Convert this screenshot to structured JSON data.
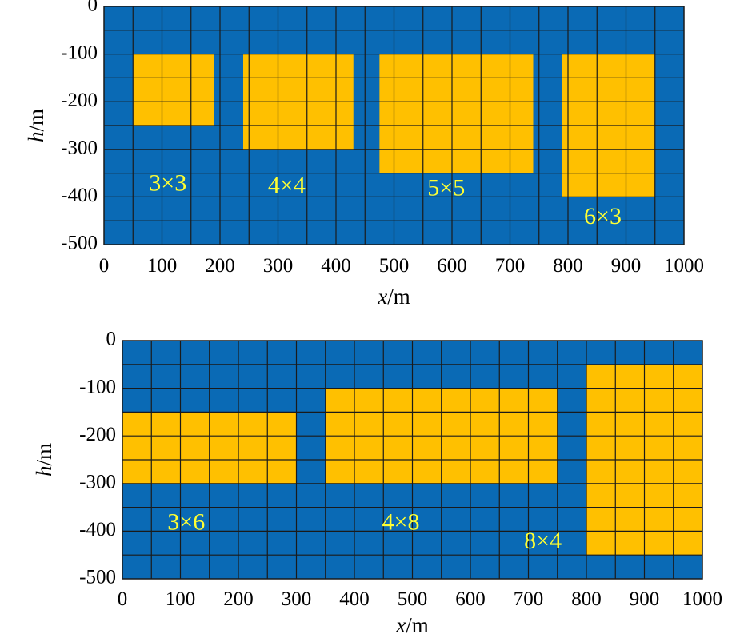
{
  "colors": {
    "background_cells": "#0a6ab5",
    "anomaly_cells": "#ffc000",
    "grid_lines": "#1a1a1a",
    "block_labels": "#ffff33"
  },
  "chart_data": [
    {
      "type": "heatmap",
      "xlabel_italic": "x",
      "xlabel_unit": "/m",
      "ylabel_italic": "h",
      "ylabel_unit": "/m",
      "xlim": [
        0,
        1000
      ],
      "ylim": [
        -500,
        0
      ],
      "x_ticks": [
        "0",
        "100",
        "200",
        "300",
        "400",
        "500",
        "600",
        "700",
        "800",
        "900",
        "1000"
      ],
      "y_ticks": [
        "0",
        "-100",
        "-200",
        "-300",
        "-400",
        "-500"
      ],
      "cell_width": 50,
      "cell_height": 50,
      "grid": true,
      "blocks": [
        {
          "label": "3×3",
          "x0": 50,
          "x1": 190,
          "top": -100,
          "bottom": -250,
          "label_x": 110,
          "label_h": -375
        },
        {
          "label": "4×4",
          "x0": 240,
          "x1": 430,
          "top": -100,
          "bottom": -300,
          "label_x": 315,
          "label_h": -380
        },
        {
          "label": "5×5",
          "x0": 475,
          "x1": 740,
          "top": -100,
          "bottom": -350,
          "label_x": 590,
          "label_h": -385
        },
        {
          "label": "6×3",
          "x0": 790,
          "x1": 950,
          "top": -100,
          "bottom": -400,
          "label_x": 860,
          "label_h": -445
        }
      ]
    },
    {
      "type": "heatmap",
      "xlabel_italic": "x",
      "xlabel_unit": "/m",
      "ylabel_italic": "h",
      "ylabel_unit": "/m",
      "xlim": [
        0,
        1000
      ],
      "ylim": [
        -500,
        0
      ],
      "x_ticks": [
        "0",
        "100",
        "200",
        "300",
        "400",
        "500",
        "600",
        "700",
        "800",
        "900",
        "1000"
      ],
      "y_ticks": [
        "0",
        "-100",
        "-200",
        "-300",
        "-400",
        "-500"
      ],
      "cell_width": 50,
      "cell_height": 50,
      "grid": true,
      "blocks": [
        {
          "label": "3×6",
          "x0": 0,
          "x1": 300,
          "top": -150,
          "bottom": -300,
          "label_x": 110,
          "label_h": -385
        },
        {
          "label": "4×8",
          "x0": 350,
          "x1": 750,
          "top": -100,
          "bottom": -300,
          "label_x": 480,
          "label_h": -385
        },
        {
          "label": "8×4",
          "x0": 800,
          "x1": 1000,
          "top": -50,
          "bottom": -450,
          "label_x": 725,
          "label_h": -425
        }
      ]
    }
  ]
}
